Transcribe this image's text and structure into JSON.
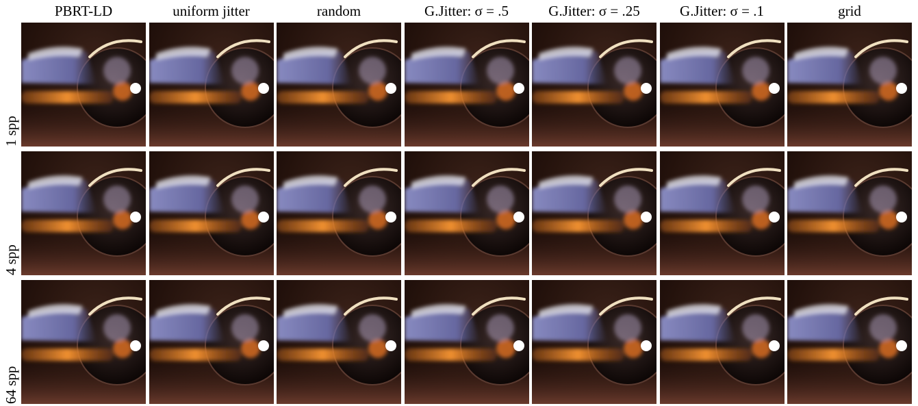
{
  "columns": [
    "PBRT-LD",
    "uniform jitter",
    "random",
    "G.Jitter: σ = .5",
    "G.Jitter: σ = .25",
    "G.Jitter: σ = .1",
    "grid"
  ],
  "rows": [
    "1 spp",
    "4 spp",
    "64 spp"
  ]
}
